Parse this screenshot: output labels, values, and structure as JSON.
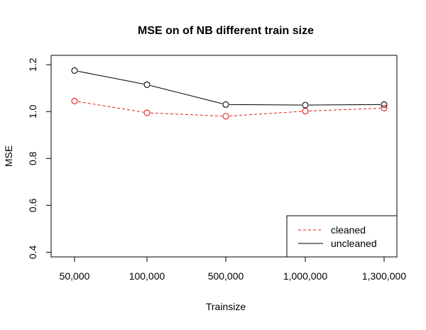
{
  "chart_data": {
    "type": "line",
    "title": "MSE on of NB different train size",
    "xlabel": "Trainsize",
    "ylabel": "MSE",
    "categories": [
      "50,000",
      "100,000",
      "500,000",
      "1,000,000",
      "1,300,000"
    ],
    "ylim": [
      0.38,
      1.24
    ],
    "yticks": [
      0.4,
      0.6,
      0.8,
      1.0,
      1.2
    ],
    "ytick_labels": [
      "0.4",
      "0.6",
      "0.8",
      "1.0",
      "1.2"
    ],
    "grid": false,
    "legend_position": "bottom-right",
    "series": [
      {
        "name": "cleaned",
        "values": [
          1.045,
          0.995,
          0.98,
          1.002,
          1.015
        ],
        "color": "#e41a1c",
        "line_style": "dashed",
        "marker": "open-circle"
      },
      {
        "name": "uncleaned",
        "values": [
          1.175,
          1.115,
          1.03,
          1.028,
          1.03
        ],
        "color": "#000000",
        "line_style": "solid",
        "marker": "open-circle"
      }
    ]
  }
}
